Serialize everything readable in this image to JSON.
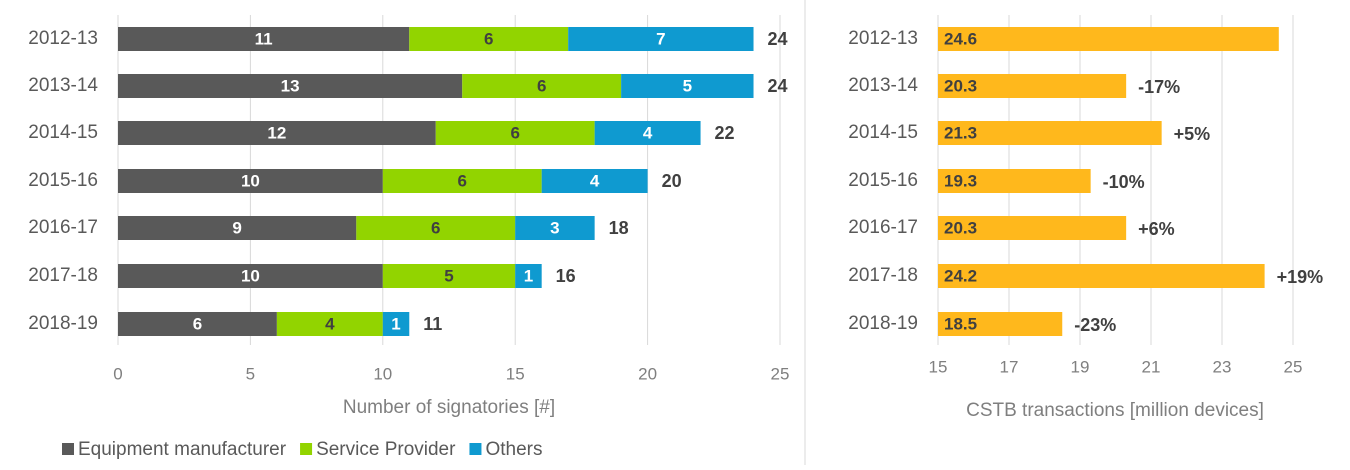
{
  "chart_data": [
    {
      "type": "stacked-bar",
      "categories": [
        "2012-13",
        "2013-14",
        "2014-15",
        "2015-16",
        "2016-17",
        "2017-18",
        "2018-19"
      ],
      "series": [
        {
          "name": "Equipment manufacturer",
          "color": "#595959",
          "values": [
            11,
            13,
            12,
            10,
            9,
            10,
            6
          ]
        },
        {
          "name": "Service Provider",
          "color": "#92d400",
          "values": [
            6,
            6,
            6,
            6,
            6,
            5,
            4
          ]
        },
        {
          "name": "Others",
          "color": "#0f9ad0",
          "values": [
            7,
            5,
            4,
            4,
            3,
            1,
            1
          ]
        }
      ],
      "totals": [
        24,
        24,
        22,
        20,
        18,
        16,
        11
      ],
      "xlim": [
        0,
        25
      ],
      "xticks": [
        0,
        5,
        10,
        15,
        20,
        25
      ],
      "xlabel": "Number of signatories [#]",
      "grid": true,
      "legend": "bottom"
    },
    {
      "type": "bar",
      "categories": [
        "2012-13",
        "2013-14",
        "2014-15",
        "2015-16",
        "2016-17",
        "2017-18",
        "2018-19"
      ],
      "values": [
        24.6,
        20.3,
        21.3,
        19.3,
        20.3,
        24.2,
        18.5
      ],
      "changes": [
        null,
        "-17%",
        "+5%",
        "-10%",
        "+6%",
        "+19%",
        "-23%"
      ],
      "color": "#ffb81c",
      "xlim": [
        15,
        25
      ],
      "xticks": [
        15,
        17,
        19,
        21,
        23,
        25
      ],
      "xlabel": "CSTB transactions [million devices]",
      "grid": true
    }
  ]
}
